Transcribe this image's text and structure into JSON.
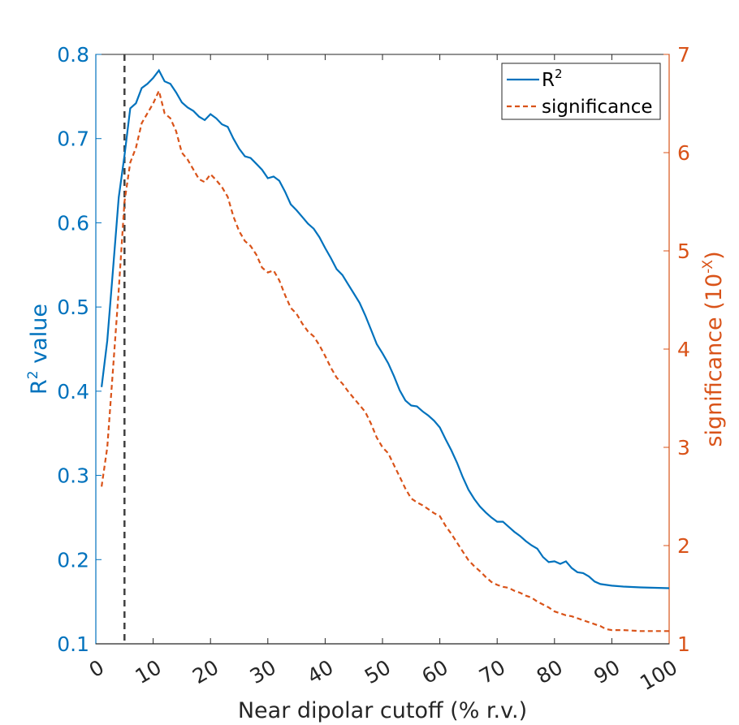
{
  "chart_data": {
    "type": "line",
    "xlabel": "Near dipolar cutoff (% r.v.)",
    "ylabel_left": {
      "base": "R",
      "sup": "2",
      "rest": " value"
    },
    "ylabel_right": {
      "base": "significance (10",
      "sup": "-X",
      "rest": ")"
    },
    "xlim": [
      0,
      100
    ],
    "ylim_left": [
      0.1,
      0.8
    ],
    "ylim_right": [
      1,
      7
    ],
    "xticks": [
      0,
      10,
      20,
      30,
      40,
      50,
      60,
      70,
      80,
      90,
      100
    ],
    "yticks_left": [
      0.1,
      0.2,
      0.3,
      0.4,
      0.5,
      0.6,
      0.7,
      0.8
    ],
    "yticks_left_labels": [
      "0.1",
      "0.2",
      "0.3",
      "0.4",
      "0.5",
      "0.6",
      "0.7",
      "0.8"
    ],
    "yticks_right": [
      1,
      2,
      3,
      4,
      5,
      6,
      7
    ],
    "yticks_right_labels": [
      "1",
      "2",
      "3",
      "4",
      "5",
      "6",
      "7"
    ],
    "vline_x": 5,
    "colors": {
      "r2": "#0072BD",
      "significance": "#D95319",
      "vline": "#404040",
      "axes": "#262626"
    },
    "legend": {
      "location": "top-right",
      "entries": [
        {
          "base": "R",
          "sup": "2"
        },
        {
          "base": "significance",
          "sup": ""
        }
      ]
    },
    "series": [
      {
        "name": "R2",
        "axis": "left",
        "style": "solid",
        "x": [
          1,
          2,
          3,
          4,
          5,
          6,
          7,
          8,
          9,
          10,
          11,
          12,
          13,
          14,
          15,
          16,
          17,
          18,
          19,
          20,
          21,
          22,
          23,
          24,
          25,
          26,
          27,
          28,
          29,
          30,
          31,
          32,
          33,
          34,
          35,
          36,
          37,
          38,
          39,
          40,
          41,
          42,
          43,
          44,
          45,
          46,
          47,
          48,
          49,
          50,
          51,
          52,
          53,
          54,
          55,
          56,
          57,
          58,
          59,
          60,
          61,
          62,
          63,
          64,
          65,
          66,
          67,
          68,
          69,
          70,
          71,
          72,
          73,
          74,
          75,
          76,
          77,
          78,
          79,
          80,
          81,
          82,
          83,
          84,
          85,
          86,
          87,
          88,
          89,
          90,
          92,
          95,
          100
        ],
        "values": [
          0.405,
          0.46,
          0.545,
          0.63,
          0.68,
          0.736,
          0.742,
          0.76,
          0.765,
          0.772,
          0.781,
          0.768,
          0.765,
          0.755,
          0.743,
          0.737,
          0.733,
          0.726,
          0.722,
          0.729,
          0.724,
          0.717,
          0.714,
          0.7,
          0.688,
          0.679,
          0.677,
          0.67,
          0.663,
          0.653,
          0.655,
          0.65,
          0.637,
          0.622,
          0.615,
          0.607,
          0.599,
          0.593,
          0.583,
          0.57,
          0.558,
          0.545,
          0.538,
          0.527,
          0.516,
          0.505,
          0.49,
          0.473,
          0.456,
          0.445,
          0.433,
          0.418,
          0.401,
          0.389,
          0.383,
          0.382,
          0.376,
          0.371,
          0.365,
          0.357,
          0.343,
          0.33,
          0.315,
          0.298,
          0.283,
          0.272,
          0.263,
          0.256,
          0.25,
          0.245,
          0.245,
          0.239,
          0.233,
          0.228,
          0.222,
          0.217,
          0.213,
          0.203,
          0.197,
          0.198,
          0.195,
          0.198,
          0.19,
          0.185,
          0.184,
          0.18,
          0.174,
          0.171,
          0.17,
          0.169,
          0.168,
          0.167,
          0.166
        ]
      },
      {
        "name": "significance",
        "axis": "right",
        "style": "dashed",
        "x": [
          1,
          2,
          3,
          4,
          5,
          6,
          7,
          8,
          9,
          10,
          11,
          12,
          13,
          14,
          15,
          16,
          17,
          18,
          19,
          20,
          21,
          22,
          23,
          24,
          25,
          26,
          27,
          28,
          29,
          30,
          31,
          32,
          33,
          34,
          35,
          36,
          37,
          38,
          39,
          40,
          41,
          42,
          43,
          44,
          45,
          46,
          47,
          48,
          49,
          50,
          51,
          52,
          53,
          54,
          55,
          56,
          57,
          58,
          59,
          60,
          61,
          62,
          63,
          64,
          65,
          66,
          67,
          68,
          69,
          70,
          71,
          72,
          73,
          74,
          75,
          76,
          77,
          78,
          79,
          80,
          81,
          82,
          83,
          84,
          85,
          86,
          87,
          88,
          89,
          90,
          92,
          95,
          100
        ],
        "values": [
          2.6,
          3.0,
          3.8,
          4.6,
          5.5,
          5.9,
          6.05,
          6.3,
          6.4,
          6.5,
          6.63,
          6.4,
          6.35,
          6.22,
          6.0,
          5.93,
          5.83,
          5.73,
          5.7,
          5.78,
          5.72,
          5.65,
          5.55,
          5.35,
          5.2,
          5.1,
          5.05,
          4.96,
          4.83,
          4.78,
          4.8,
          4.7,
          4.55,
          4.42,
          4.36,
          4.26,
          4.18,
          4.13,
          4.04,
          3.93,
          3.81,
          3.71,
          3.65,
          3.57,
          3.5,
          3.43,
          3.36,
          3.24,
          3.1,
          3.0,
          2.94,
          2.82,
          2.7,
          2.58,
          2.48,
          2.44,
          2.41,
          2.37,
          2.33,
          2.3,
          2.2,
          2.12,
          2.03,
          1.94,
          1.85,
          1.79,
          1.74,
          1.68,
          1.63,
          1.6,
          1.58,
          1.57,
          1.54,
          1.52,
          1.49,
          1.47,
          1.43,
          1.4,
          1.37,
          1.33,
          1.31,
          1.29,
          1.28,
          1.26,
          1.24,
          1.22,
          1.2,
          1.18,
          1.15,
          1.14,
          1.14,
          1.13,
          1.13
        ]
      }
    ]
  }
}
